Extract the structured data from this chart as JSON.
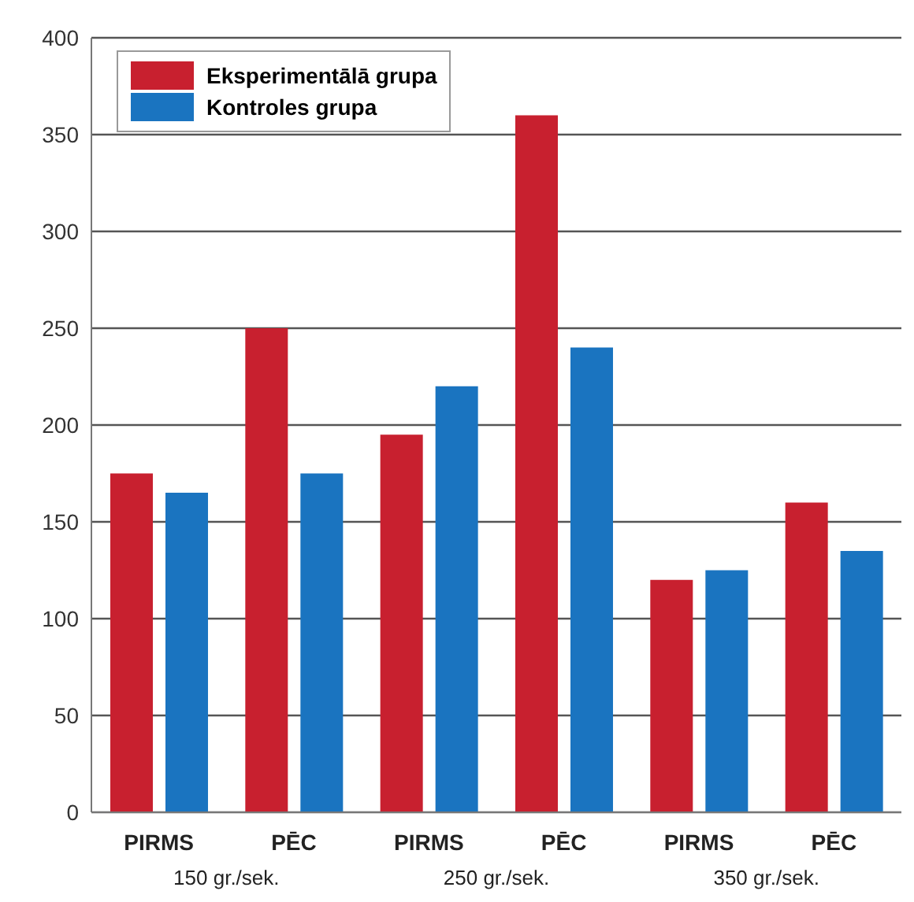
{
  "chart_data": {
    "type": "bar",
    "categories": [
      "PIRMS",
      "PĒC",
      "PIRMS",
      "PĒC",
      "PIRMS",
      "PĒC"
    ],
    "series": [
      {
        "name": "Eksperimentālā grupa",
        "color": "#c8202f",
        "values": [
          175,
          250,
          195,
          360,
          120,
          160
        ]
      },
      {
        "name": "Kontroles grupa",
        "color": "#1a74c0",
        "values": [
          165,
          175,
          220,
          240,
          125,
          135
        ]
      }
    ],
    "annotations": [
      "150 gr./sek.",
      "250 gr./sek.",
      "350 gr./sek."
    ],
    "ylim": [
      0,
      400
    ],
    "yticks": [
      0,
      50,
      100,
      150,
      200,
      250,
      300,
      350,
      400
    ],
    "grid": "y",
    "legend": "top left"
  }
}
